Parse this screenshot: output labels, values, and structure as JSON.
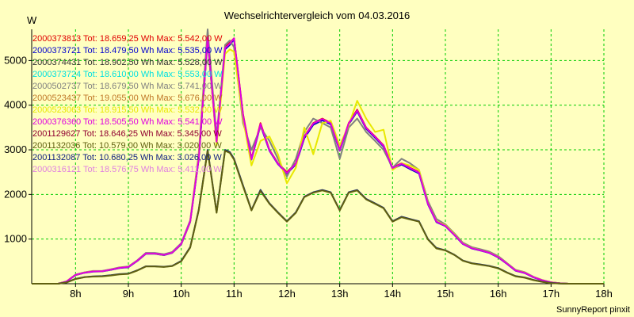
{
  "chart_data": {
    "type": "line",
    "title": "Wechselrichtervergleich vom 04.03.2016",
    "ylabel": "W",
    "footer": "SunnyReport pinxit",
    "xlim": [
      7.17,
      18.0
    ],
    "ylim": [
      0,
      5700
    ],
    "grid": true,
    "x_ticks": [
      8,
      9,
      10,
      11,
      12,
      13,
      14,
      15,
      16,
      17,
      18
    ],
    "x_tick_labels": [
      "8h",
      "9h",
      "10h",
      "11h",
      "12h",
      "13h",
      "14h",
      "15h",
      "16h",
      "17h",
      "18h"
    ],
    "y_ticks": [
      1000,
      2000,
      3000,
      4000,
      5000
    ],
    "y_tick_labels": [
      "1000",
      "2000",
      "3000",
      "4000",
      "5000"
    ],
    "legend_position": "top-left",
    "legend": [
      {
        "text": "2000373813 Tot: 18.659,25 Wh Max: 5.542,00 W",
        "color": "#e00000"
      },
      {
        "text": "2000373721 Tot: 18.479,50 Wh Max: 5.535,00 W",
        "color": "#0000d0"
      },
      {
        "text": "2000374431 Tot: 18.902,50 Wh Max: 5.528,00 W",
        "color": "#303030"
      },
      {
        "text": "2000373724 Tot: 18.610,00 Wh Max: 5.553,00 W",
        "color": "#00e0e0"
      },
      {
        "text": "2000502737 Tot: 18.679,50 Wh Max: 5.741,00 W",
        "color": "#808080"
      },
      {
        "text": "2000523437 Tot: 19.055,00 Wh Max: 5.676,00 W",
        "color": "#c07828"
      },
      {
        "text": "2000523063 Tot: 18.915,50 Wh Max: 5.532,00 W",
        "color": "#e8e800"
      },
      {
        "text": "2000376360 Tot: 18.505,50 Wh Max: 5.541,00 W",
        "color": "#e000e0"
      },
      {
        "text": "2001129627 Tot: 18.646,25 Wh Max: 5.345,00 W",
        "color": "#900030"
      },
      {
        "text": "2001132036 Tot: 10.579,00 Wh Max: 3.020,00 W",
        "color": "#606010"
      },
      {
        "text": "2001132087 Tot: 10.680,25 Wh Max: 3.026,00 W",
        "color": "#102080"
      },
      {
        "text": "2000316121 Tot: 18.576,75 Wh Max: 5.411,00 W",
        "color": "#e080e0"
      }
    ],
    "x": [
      7.17,
      7.67,
      7.83,
      8.0,
      8.17,
      8.33,
      8.5,
      8.67,
      8.83,
      9.0,
      9.17,
      9.33,
      9.5,
      9.67,
      9.83,
      10.0,
      10.17,
      10.33,
      10.5,
      10.67,
      10.83,
      10.92,
      11.0,
      11.17,
      11.33,
      11.5,
      11.67,
      11.83,
      12.0,
      12.17,
      12.33,
      12.5,
      12.67,
      12.83,
      13.0,
      13.17,
      13.33,
      13.5,
      13.67,
      13.83,
      14.0,
      14.17,
      14.33,
      14.5,
      14.67,
      14.83,
      15.0,
      15.17,
      15.33,
      15.5,
      15.67,
      15.83,
      16.0,
      16.17,
      16.33,
      16.5,
      16.67,
      16.83,
      17.0,
      17.17,
      17.33,
      17.5,
      17.67,
      17.83,
      18.0
    ],
    "series": [
      {
        "legend_index": 0,
        "values": [
          0,
          0,
          50,
          200,
          250,
          280,
          280,
          320,
          360,
          380,
          520,
          680,
          680,
          650,
          700,
          900,
          1400,
          2800,
          5500,
          3200,
          5300,
          5400,
          5500,
          3800,
          2800,
          3600,
          3000,
          2700,
          2500,
          2700,
          3300,
          3600,
          3700,
          3600,
          3000,
          3600,
          3900,
          3500,
          3300,
          3100,
          2600,
          2700,
          2600,
          2500,
          1800,
          1400,
          1300,
          1100,
          900,
          800,
          750,
          700,
          600,
          450,
          300,
          250,
          150,
          80,
          30,
          10,
          0,
          0,
          0,
          0,
          0
        ]
      },
      {
        "legend_index": 1,
        "values": [
          0,
          0,
          50,
          190,
          245,
          270,
          275,
          310,
          350,
          370,
          510,
          670,
          670,
          640,
          690,
          880,
          1380,
          2780,
          5450,
          3150,
          5250,
          5350,
          5480,
          3750,
          2780,
          3550,
          2980,
          2680,
          2470,
          2670,
          3260,
          3560,
          3660,
          3570,
          2980,
          3570,
          3860,
          3470,
          3270,
          3070,
          2570,
          2670,
          2570,
          2470,
          1780,
          1380,
          1290,
          1090,
          890,
          790,
          740,
          690,
          590,
          440,
          290,
          240,
          140,
          75,
          28,
          8,
          0,
          0,
          0,
          0,
          0
        ]
      },
      {
        "legend_index": 4,
        "values": [
          0,
          0,
          55,
          205,
          255,
          285,
          285,
          325,
          365,
          385,
          525,
          690,
          690,
          660,
          710,
          910,
          1420,
          2900,
          5700,
          3300,
          5350,
          5450,
          5300,
          3600,
          3000,
          3500,
          3200,
          2800,
          2400,
          2800,
          3400,
          3700,
          3600,
          3500,
          2800,
          3500,
          3700,
          3400,
          3200,
          3000,
          2600,
          2800,
          2700,
          2550,
          1850,
          1450,
          1330,
          1130,
          920,
          820,
          770,
          720,
          620,
          460,
          310,
          260,
          155,
          85,
          32,
          10,
          0,
          0,
          0,
          0,
          0
        ]
      },
      {
        "legend_index": 6,
        "values": [
          0,
          0,
          52,
          195,
          250,
          278,
          278,
          318,
          358,
          378,
          515,
          675,
          675,
          645,
          695,
          890,
          1390,
          2850,
          5500,
          3100,
          5150,
          5250,
          5200,
          3700,
          2650,
          3200,
          3300,
          2900,
          2250,
          2600,
          3500,
          2900,
          3600,
          3650,
          3100,
          3550,
          4100,
          3700,
          3400,
          3450,
          2550,
          2700,
          2650,
          2550,
          1800,
          1400,
          1310,
          1110,
          900,
          800,
          750,
          700,
          600,
          450,
          300,
          250,
          150,
          80,
          30,
          10,
          0,
          0,
          0,
          0,
          0
        ]
      },
      {
        "legend_index": 7,
        "values": [
          0,
          0,
          50,
          198,
          248,
          276,
          278,
          316,
          356,
          376,
          516,
          676,
          676,
          646,
          696,
          895,
          1395,
          2790,
          5520,
          3180,
          5280,
          5380,
          5500,
          3780,
          2790,
          3580,
          2990,
          2690,
          2480,
          2690,
          3290,
          3590,
          3690,
          3590,
          2990,
          3590,
          3880,
          3490,
          3290,
          3090,
          2590,
          2690,
          2590,
          2490,
          1790,
          1390,
          1295,
          1095,
          895,
          795,
          745,
          695,
          595,
          445,
          295,
          245,
          145,
          78,
          29,
          9,
          0,
          0,
          0,
          0,
          0
        ]
      },
      {
        "legend_index": 10,
        "values": [
          0,
          0,
          30,
          110,
          150,
          165,
          170,
          190,
          215,
          225,
          300,
          390,
          390,
          380,
          400,
          510,
          820,
          1650,
          3000,
          1600,
          3000,
          2950,
          2800,
          2200,
          1650,
          2100,
          1800,
          1600,
          1400,
          1600,
          1950,
          2050,
          2100,
          2050,
          1650,
          2050,
          2100,
          1900,
          1800,
          1700,
          1400,
          1500,
          1450,
          1400,
          1000,
          800,
          750,
          650,
          520,
          460,
          430,
          400,
          350,
          250,
          170,
          140,
          85,
          45,
          17,
          5,
          0,
          0,
          0,
          0,
          0
        ]
      },
      {
        "legend_index": 9,
        "values": [
          0,
          0,
          28,
          105,
          145,
          160,
          165,
          185,
          210,
          220,
          295,
          385,
          385,
          375,
          395,
          500,
          810,
          1640,
          2980,
          1590,
          2980,
          2930,
          2780,
          2180,
          1640,
          2080,
          1790,
          1590,
          1390,
          1590,
          1940,
          2040,
          2090,
          2040,
          1640,
          2040,
          2090,
          1890,
          1790,
          1690,
          1390,
          1490,
          1440,
          1390,
          990,
          790,
          745,
          645,
          515,
          455,
          425,
          395,
          345,
          245,
          165,
          135,
          80,
          42,
          15,
          4,
          0,
          0,
          0,
          0,
          0
        ]
      }
    ]
  }
}
